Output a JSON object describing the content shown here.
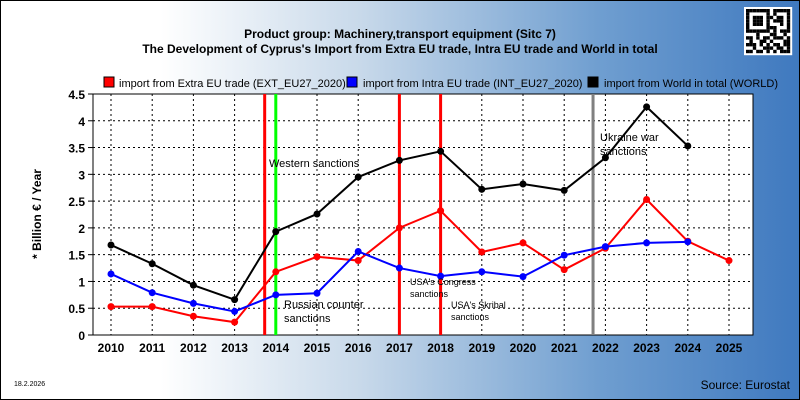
{
  "chart_data": {
    "type": "line",
    "title": "Product group: Machinery,transport equipment (Sitc 7)",
    "subtitle": "The Development of Cyprus's Import from Extra EU trade, Intra EU trade and World in total",
    "ylabel": "* Billion € / Year",
    "xlabel": "",
    "categories": [
      "2010",
      "2011",
      "2012",
      "2013",
      "2014",
      "2015",
      "2016",
      "2017",
      "2018",
      "2019",
      "2020",
      "2021",
      "2022",
      "2023",
      "2024",
      "2025"
    ],
    "ylim": [
      0,
      4.5
    ],
    "yticks": [
      "0",
      "0.5",
      "1",
      "1.5",
      "2",
      "2.5",
      "3",
      "3.5",
      "4",
      "4.5"
    ],
    "grid": true,
    "legend_position": "top",
    "series": [
      {
        "name": "import from Extra EU trade (EXT_EU27_2020)",
        "color": "#ff0000",
        "values": [
          0.53,
          0.53,
          0.35,
          0.24,
          1.18,
          1.46,
          1.39,
          2.0,
          2.32,
          1.55,
          1.72,
          1.22,
          1.62,
          2.53,
          1.75,
          1.39
        ]
      },
      {
        "name": "import from Intra EU trade (INT_EU27_2020)",
        "color": "#0000ff",
        "values": [
          1.14,
          0.79,
          0.59,
          0.44,
          0.75,
          0.78,
          1.56,
          1.25,
          1.1,
          1.18,
          1.09,
          1.49,
          1.65,
          1.72,
          1.74,
          null
        ]
      },
      {
        "name": "import from World in total (WORLD)",
        "color": "#000000",
        "values": [
          1.68,
          1.33,
          0.93,
          0.66,
          1.93,
          2.26,
          2.95,
          3.26,
          3.43,
          2.72,
          2.82,
          2.7,
          3.31,
          4.26,
          3.53,
          null
        ]
      }
    ],
    "events": [
      {
        "x": 2013.73,
        "color": "#ff0000",
        "label": "",
        "size": "big"
      },
      {
        "x": 2014.0,
        "color": "#00ff00",
        "label": "",
        "size": "big"
      },
      {
        "x": 2017.0,
        "color": "#ff0000",
        "label": "",
        "size": "small"
      },
      {
        "x": 2018.0,
        "color": "#ff0000",
        "label": "",
        "size": "small"
      },
      {
        "x": 2021.7,
        "color": "#808080",
        "label": "",
        "size": "big"
      }
    ],
    "annotations": {
      "western": "Western sanctions",
      "russian_1": "Russian counter",
      "russian_2": "sanctions",
      "usa_congress_1": "USA's Congress",
      "usa_congress_2": "sanctions",
      "usa_skribal_1": "USA's Skribal",
      "usa_skribal_2": "sanctions",
      "ukraine_1": "Ukraine war",
      "ukraine_2": "sanctions"
    },
    "source": "Source: Eurostat",
    "date": "18.2.2026"
  }
}
